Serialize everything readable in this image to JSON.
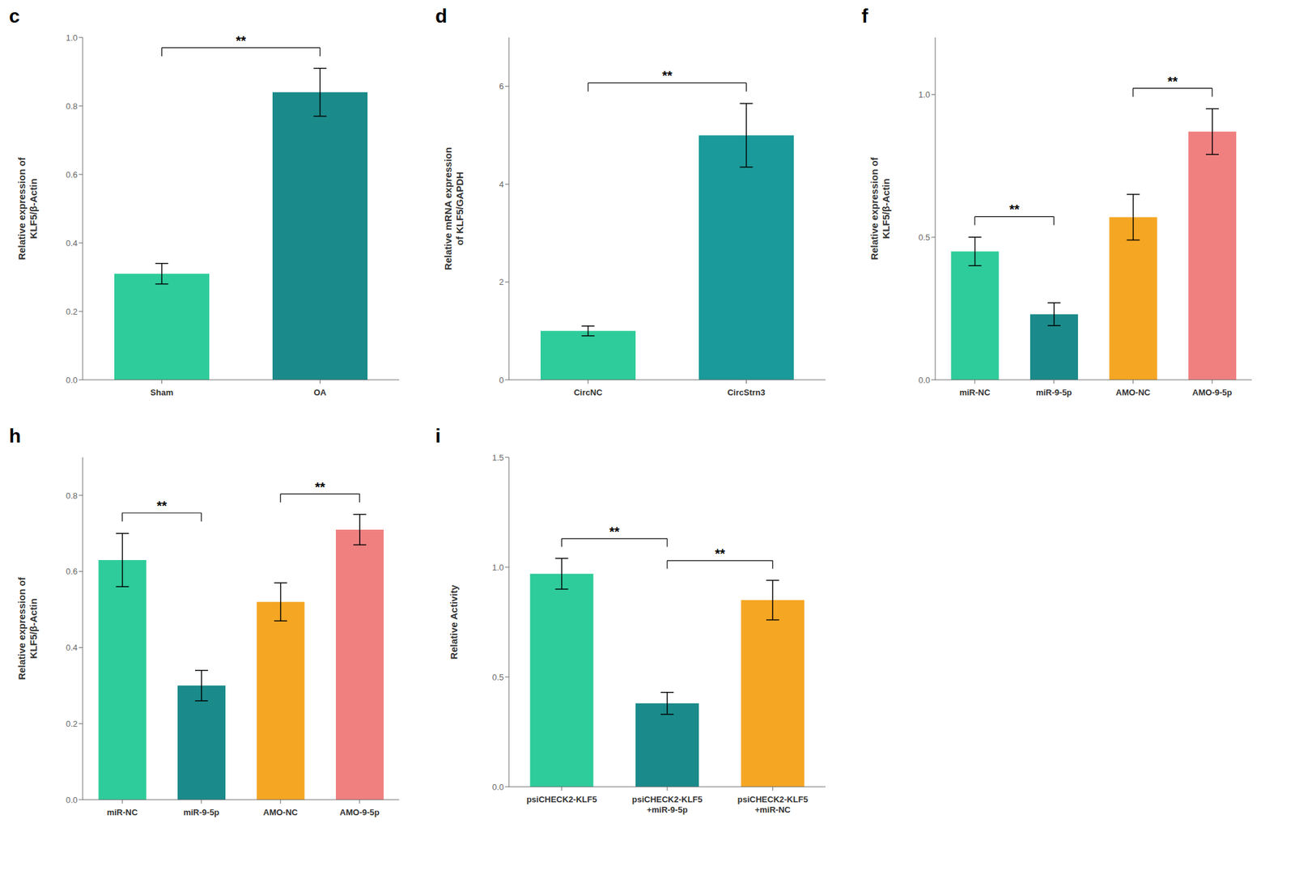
{
  "chart_data": [
    {
      "type": "bar",
      "title": "c",
      "categories": [
        "Sham",
        "OA"
      ],
      "values": [
        0.31,
        0.84
      ],
      "errors": [
        0.03,
        0.07
      ],
      "colors": [
        "#2ECC9A",
        "#1A8A8A"
      ],
      "ylabel": "Relative expression of\nKLF5/β-Actin",
      "ylim": [
        0,
        1.0
      ],
      "yticks": [
        {
          "value": 0.0,
          "label": "0.0"
        },
        0.2,
        0.4,
        0.6,
        0.8,
        {
          "value": 1.0,
          "label": "1.0"
        }
      ],
      "grid": false,
      "annotations": [
        {
          "text": "**",
          "between": [
            "Sham",
            "OA"
          ]
        }
      ]
    },
    {
      "type": "bar",
      "title": "d",
      "categories": [
        "CircNC",
        "CircStrn3"
      ],
      "values": [
        1.0,
        5.0
      ],
      "errors": [
        0.1,
        0.65
      ],
      "colors": [
        "#2ECC9A",
        "#1A9A9A"
      ],
      "ylabel": "Relative mRNA expression\nof KLF5/GAPDH",
      "ylim": [
        0,
        7
      ],
      "yticks": [
        0,
        2,
        4,
        6
      ],
      "grid": false,
      "annotations": [
        {
          "text": "**",
          "between": [
            "CircNC",
            "CircStrn3"
          ]
        }
      ]
    },
    {
      "type": "bar",
      "title": "f",
      "categories": [
        "miR-NC",
        "miR-9-5p",
        "AMO-NC",
        "AMO-9-5p"
      ],
      "values": [
        0.45,
        0.23,
        0.57,
        0.87
      ],
      "errors": [
        0.05,
        0.04,
        0.08,
        0.08
      ],
      "colors": [
        "#2ECC9A",
        "#1A8A8A",
        "#F5A623",
        "#F08080"
      ],
      "ylabel": "Relative expression of\nKLF5/β-Actin",
      "ylim": [
        0,
        1.2
      ],
      "yticks": [
        {
          "value": 0.0,
          "label": "0.0"
        },
        0.5,
        {
          "value": 1.0,
          "label": "1.0"
        }
      ],
      "grid": false,
      "annotations": [
        {
          "text": "**",
          "between": [
            "miR-NC",
            "miR-9-5p"
          ]
        },
        {
          "text": "**",
          "between": [
            "AMO-NC",
            "AMO-9-5p"
          ]
        }
      ]
    },
    {
      "type": "bar",
      "title": "h",
      "categories": [
        "miR-NC",
        "miR-9-5p",
        "AMO-NC",
        "AMO-9-5p"
      ],
      "values": [
        0.63,
        0.3,
        0.52,
        0.71
      ],
      "errors": [
        0.07,
        0.04,
        0.05,
        0.04
      ],
      "colors": [
        "#2ECC9A",
        "#1A8A8A",
        "#F5A623",
        "#F08080"
      ],
      "ylabel": "Relative expression of\nKLF5/β-Actin",
      "ylim": [
        0,
        0.9
      ],
      "yticks": [
        {
          "value": 0.0,
          "label": "0.0"
        },
        0.2,
        0.4,
        0.6,
        0.8
      ],
      "grid": false,
      "annotations": [
        {
          "text": "**",
          "between": [
            "miR-NC",
            "miR-9-5p"
          ]
        },
        {
          "text": "**",
          "between": [
            "AMO-NC",
            "AMO-9-5p"
          ]
        }
      ]
    },
    {
      "type": "bar",
      "title": "i",
      "categories": [
        "psiCHECK2-KLF5",
        "psiCHECK2-KLF5\n+miR-9-5p",
        "psiCHECK2-KLF5\n+miR-NC"
      ],
      "values": [
        0.97,
        0.38,
        0.85
      ],
      "errors": [
        0.07,
        0.05,
        0.09
      ],
      "colors": [
        "#2ECC9A",
        "#1A8A8A",
        "#F5A623"
      ],
      "ylabel": "Relative Activity",
      "ylim": [
        0,
        1.5
      ],
      "yticks": [
        {
          "value": 0.0,
          "label": "0.0"
        },
        0.5,
        {
          "value": 1.0,
          "label": "1.0"
        },
        1.5
      ],
      "grid": false,
      "annotations": [
        {
          "text": "**",
          "between": [
            "psiCHECK2-KLF5",
            "psiCHECK2-KLF5\n+miR-9-5p"
          ]
        },
        {
          "text": "**",
          "between": [
            "psiCHECK2-KLF5\n+miR-9-5p",
            "psiCHECK2-KLF5\n+miR-NC"
          ]
        }
      ]
    }
  ]
}
